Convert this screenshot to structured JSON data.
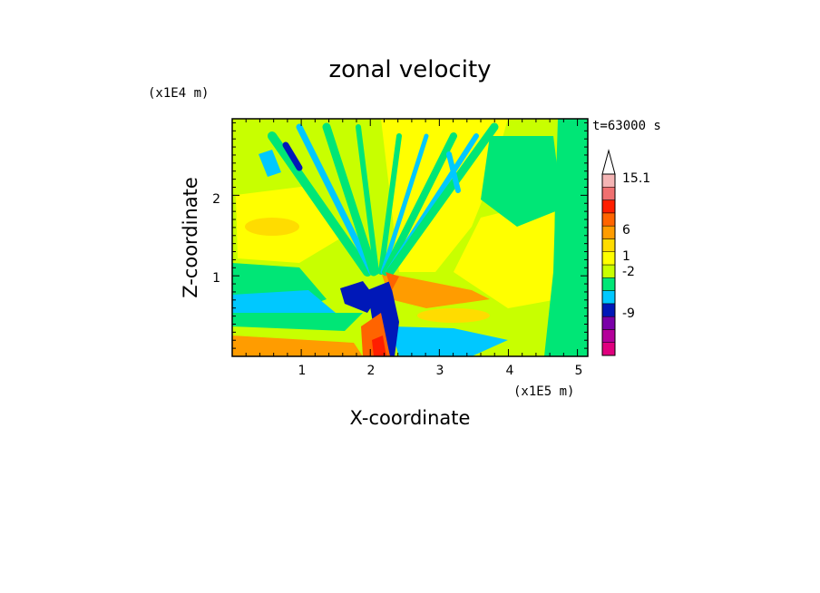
{
  "chart_data": {
    "type": "heatmap",
    "title": "zonal velocity",
    "xlabel": "X-coordinate",
    "ylabel": "Z-coordinate",
    "x_unit": "(x1E5 m)",
    "y_unit": "(x1E4 m)",
    "time_label": "t=63000 s",
    "xlim": [
      0,
      5.15
    ],
    "ylim": [
      0,
      2.95
    ],
    "x_ticks": [
      "1",
      "2",
      "3",
      "4",
      "5"
    ],
    "y_ticks": [
      "1",
      "2"
    ],
    "colorbar": {
      "labels": [
        "15.1",
        "6",
        "1",
        "-2",
        "-9"
      ],
      "colors": [
        "#e0007e",
        "#b4009a",
        "#7a00a8",
        "#0018b8",
        "#00c8ff",
        "#00e676",
        "#c8ff00",
        "#ffff00",
        "#ffdc00",
        "#ff9c00",
        "#ff6400",
        "#ff1e00",
        "#f07070",
        "#f4b4b4",
        "#ffffff"
      ]
    }
  }
}
